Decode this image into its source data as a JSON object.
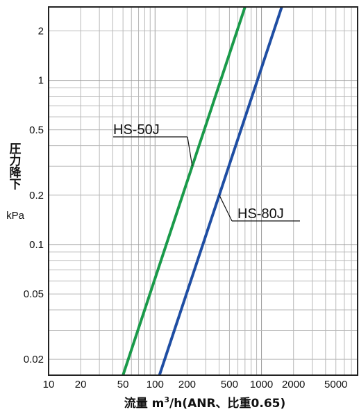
{
  "chart_data": {
    "type": "line",
    "x_scale": "log",
    "y_scale": "log",
    "xlim": [
      10,
      8000
    ],
    "ylim": [
      0.016,
      2.8
    ],
    "grid": true,
    "ylabel": "圧力降下",
    "ylabel_unit": "kPa",
    "xlabel_main": "流量 m",
    "xlabel_sup": "3",
    "xlabel_tail": "/h(ANR、比重0.65)",
    "x_ticks": [
      10,
      20,
      50,
      100,
      200,
      500,
      1000,
      2000,
      5000
    ],
    "x_tick_labels": [
      "10",
      "20",
      "50",
      "100",
      "200",
      "500",
      "1000",
      "2000",
      "5000"
    ],
    "y_ticks": [
      0.02,
      0.05,
      0.1,
      0.2,
      0.5,
      1,
      2
    ],
    "y_tick_labels": [
      "0.02",
      "0.05",
      "0.1",
      "0.2",
      "0.5",
      "1",
      "2"
    ],
    "series": [
      {
        "name": "HS-50J",
        "color": "#1a9a4a",
        "points": [
          [
            50,
            0.016
          ],
          [
            700,
            2.8
          ]
        ]
      },
      {
        "name": "HS-80J",
        "color": "#1f4ea3",
        "points": [
          [
            110,
            0.016
          ],
          [
            1550,
            2.8
          ]
        ]
      }
    ],
    "annotations": [
      {
        "text": "HS-50J",
        "series": 0
      },
      {
        "text": "HS-80J",
        "series": 1
      }
    ]
  }
}
